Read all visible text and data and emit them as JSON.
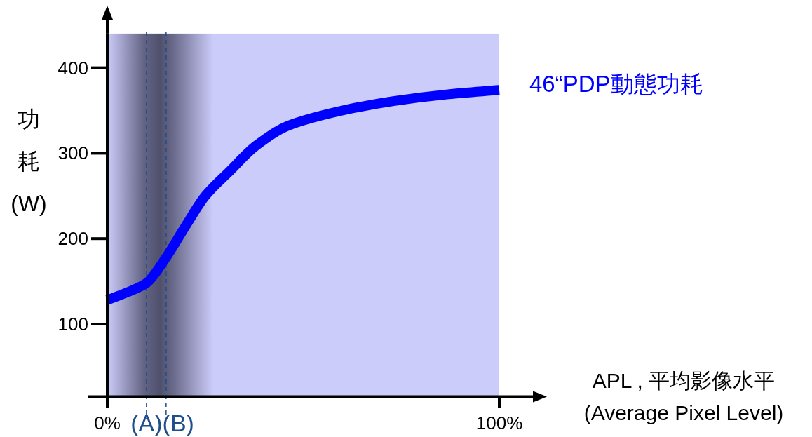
{
  "chart_data": {
    "type": "line",
    "xlabel": "APL , 平均影像水平 (Average Pixel Level)",
    "ylabel": "功耗(W)",
    "x": [
      0,
      5,
      10,
      15,
      20,
      25,
      31,
      38,
      46,
      60,
      73,
      87,
      100
    ],
    "series": [
      {
        "name": "46“PDP動態功耗",
        "color": "#0000ff",
        "values": [
          128,
          137,
          148,
          178,
          215,
          250,
          278,
          309,
          332,
          350,
          361,
          369,
          374
        ]
      }
    ],
    "xlim": [
      0,
      100
    ],
    "xticks": [
      {
        "value": 0,
        "label": "0%"
      },
      {
        "value": 100,
        "label": "100%"
      }
    ],
    "ylim": [
      15,
      440
    ],
    "yticks": [
      100,
      200,
      300,
      400
    ],
    "ref_lines": [
      {
        "axis": "x",
        "value": 10,
        "label": "(A)",
        "color": "#1f4e8c",
        "line_style": "dashed"
      },
      {
        "axis": "x",
        "value": 15,
        "label": "(B)",
        "color": "#1f4e8c",
        "line_style": "dashed"
      }
    ],
    "bands": [
      {
        "axis": "x",
        "from": 0,
        "to": 27,
        "color": "#50506e"
      }
    ],
    "legend": false,
    "marker": "none",
    "line_style": "solid"
  }
}
